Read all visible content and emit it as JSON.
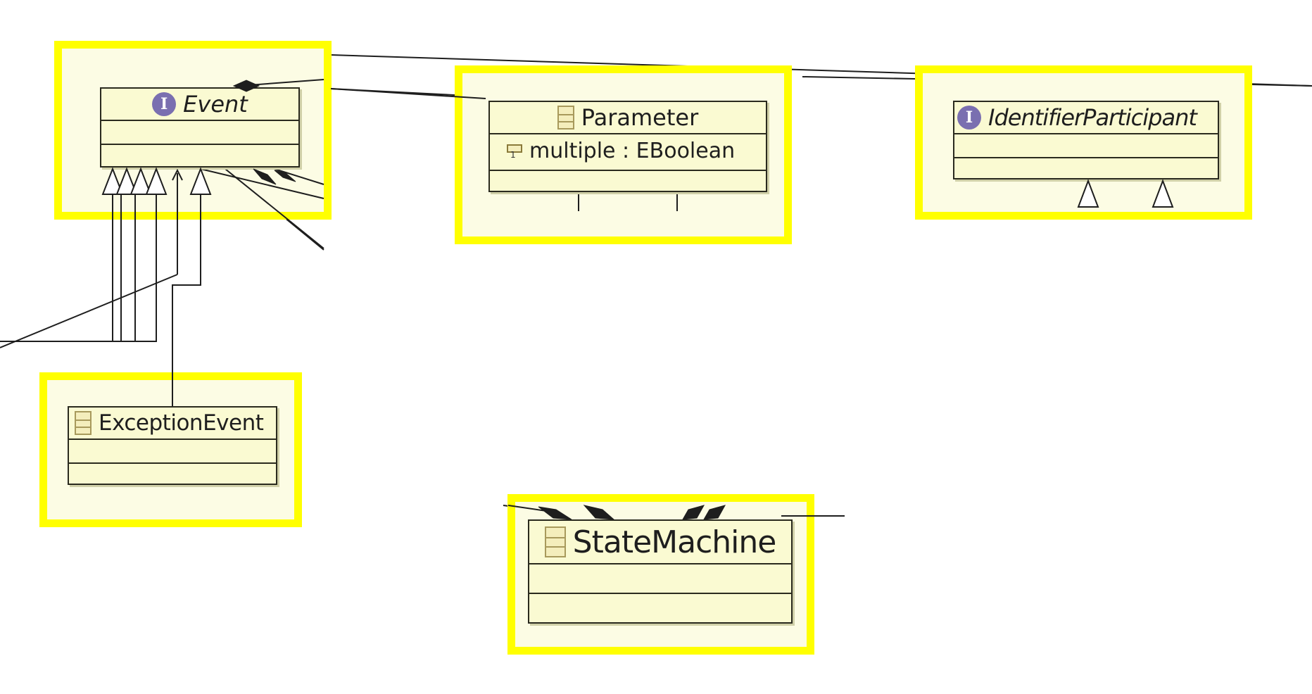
{
  "diagram": {
    "classes": {
      "event": {
        "name": "Event",
        "kind": "interface",
        "icon": "interface-icon"
      },
      "parameter": {
        "name": "Parameter",
        "kind": "class",
        "icon": "class-icon",
        "attributes": [
          {
            "label": "multiple : EBoolean",
            "icon": "attribute-icon"
          }
        ]
      },
      "identifier_participant": {
        "name": "IdentifierParticipant",
        "kind": "interface",
        "icon": "interface-icon"
      },
      "exception_event": {
        "name": "ExceptionEvent",
        "kind": "class",
        "icon": "class-icon"
      },
      "state_machine": {
        "name": "StateMachine",
        "kind": "class",
        "icon": "class-icon"
      }
    },
    "interface_icon_letter": "I",
    "colors": {
      "highlight": "#ffff00",
      "class_fill": "#fafad2",
      "interface_icon": "#7a6fb0",
      "line": "#1e1e1e"
    }
  }
}
